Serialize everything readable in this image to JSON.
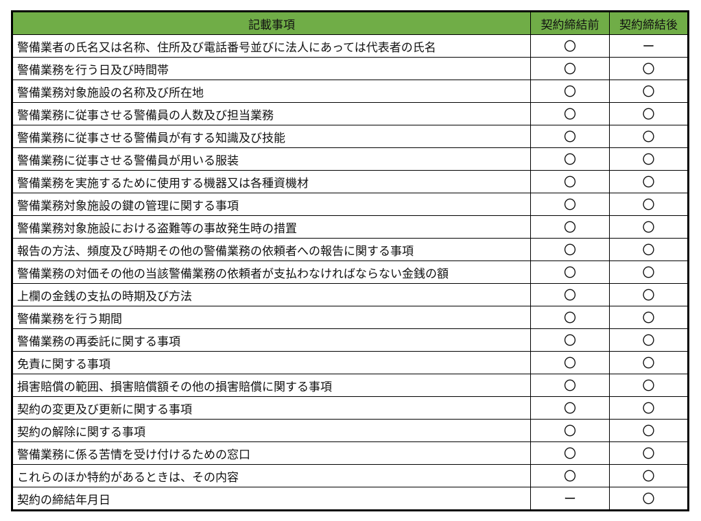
{
  "header": {
    "item": "記載事項",
    "before": "契約締結前",
    "after": "契約締結後"
  },
  "header_color": "#70AD47",
  "rows": [
    {
      "item": "警備業者の氏名又は名称、住所及び電話番号並びに法人にあっては代表者の氏名",
      "before": "〇",
      "after": "ー"
    },
    {
      "item": "警備業務を行う日及び時間帯",
      "before": "〇",
      "after": "〇"
    },
    {
      "item": "警備業務対象施設の名称及び所在地",
      "before": "〇",
      "after": "〇"
    },
    {
      "item": "警備業務に従事させる警備員の人数及び担当業務",
      "before": "〇",
      "after": "〇"
    },
    {
      "item": "警備業務に従事させる警備員が有する知識及び技能",
      "before": "〇",
      "after": "〇"
    },
    {
      "item": "警備業務に従事させる警備員が用いる服装",
      "before": "〇",
      "after": "〇"
    },
    {
      "item": "警備業務を実施するために使用する機器又は各種資機材",
      "before": "〇",
      "after": "〇"
    },
    {
      "item": "警備業務対象施設の鍵の管理に関する事項",
      "before": "〇",
      "after": "〇"
    },
    {
      "item": "警備業務対象施設における盗難等の事故発生時の措置",
      "before": "〇",
      "after": "〇"
    },
    {
      "item": "報告の方法、頻度及び時期その他の警備業務の依頼者への報告に関する事項",
      "before": "〇",
      "after": "〇"
    },
    {
      "item": "警備業務の対価その他の当該警備業務の依頼者が支払わなければならない金銭の額",
      "before": "〇",
      "after": "〇"
    },
    {
      "item": "上欄の金銭の支払の時期及び方法",
      "before": "〇",
      "after": "〇"
    },
    {
      "item": "警備業務を行う期間",
      "before": "〇",
      "after": "〇"
    },
    {
      "item": "警備業務の再委託に関する事項",
      "before": "〇",
      "after": "〇"
    },
    {
      "item": "免責に関する事項",
      "before": "〇",
      "after": "〇"
    },
    {
      "item": "損害賠償の範囲、損害賠償額その他の損害賠償に関する事項",
      "before": "〇",
      "after": "〇"
    },
    {
      "item": "契約の変更及び更新に関する事項",
      "before": "〇",
      "after": "〇"
    },
    {
      "item": "契約の解除に関する事項",
      "before": "〇",
      "after": "〇"
    },
    {
      "item": "警備業務に係る苦情を受け付けるための窓口",
      "before": "〇",
      "after": "〇"
    },
    {
      "item": "これらのほか特約があるときは、その内容",
      "before": "〇",
      "after": "〇"
    },
    {
      "item": "契約の締結年月日",
      "before": "ー",
      "after": "〇"
    }
  ]
}
